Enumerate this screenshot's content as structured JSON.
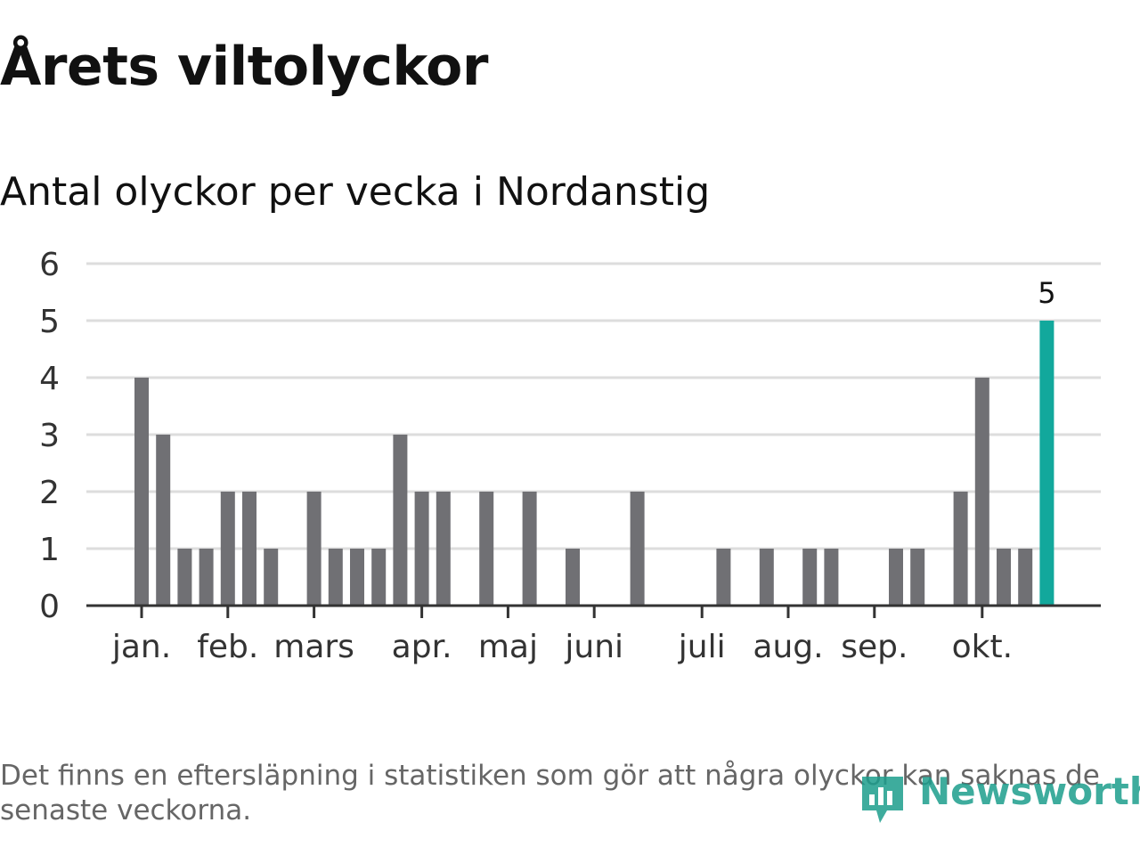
{
  "title": "Årets viltolyckor",
  "subtitle": "Antal olyckor per vecka i Nordanstig",
  "footnote": "Det finns en eftersläpning i statistiken som gör att några olyckor kan saknas de senaste veckorna.",
  "logo": {
    "text": "Newsworthy",
    "icon": "bar-chart-logo-icon"
  },
  "colors": {
    "bar": "#707074",
    "highlight": "#12a89c",
    "grid": "#dddddd",
    "axis": "#333333"
  },
  "chart_data": {
    "type": "bar",
    "title": "Antal olyckor per vecka i Nordanstig",
    "xlabel": "",
    "ylabel": "",
    "ylim": [
      0,
      6
    ],
    "yticks": [
      0,
      1,
      2,
      3,
      4,
      5,
      6
    ],
    "grid": true,
    "weeks": [
      1,
      2,
      3,
      4,
      5,
      6,
      7,
      8,
      9,
      10,
      11,
      12,
      13,
      14,
      15,
      16,
      17,
      18,
      19,
      20,
      21,
      22,
      23,
      24,
      25,
      26,
      27,
      28,
      29,
      30,
      31,
      32,
      33,
      34,
      35,
      36,
      37,
      38,
      39,
      40,
      41,
      42,
      43
    ],
    "values": [
      4,
      3,
      1,
      1,
      2,
      2,
      1,
      0,
      2,
      1,
      1,
      1,
      3,
      2,
      2,
      0,
      2,
      0,
      2,
      0,
      1,
      0,
      0,
      2,
      0,
      0,
      0,
      1,
      0,
      1,
      0,
      1,
      1,
      0,
      0,
      1,
      1,
      0,
      2,
      4,
      1,
      1,
      5
    ],
    "highlight_index": 42,
    "highlight_label": "5",
    "month_labels": [
      {
        "label": "jan.",
        "week": 1
      },
      {
        "label": "feb.",
        "week": 5
      },
      {
        "label": "mars",
        "week": 9
      },
      {
        "label": "apr.",
        "week": 14
      },
      {
        "label": "maj",
        "week": 18
      },
      {
        "label": "juni",
        "week": 22
      },
      {
        "label": "juli",
        "week": 27
      },
      {
        "label": "aug.",
        "week": 31
      },
      {
        "label": "sep.",
        "week": 35
      },
      {
        "label": "okt.",
        "week": 40
      }
    ]
  }
}
